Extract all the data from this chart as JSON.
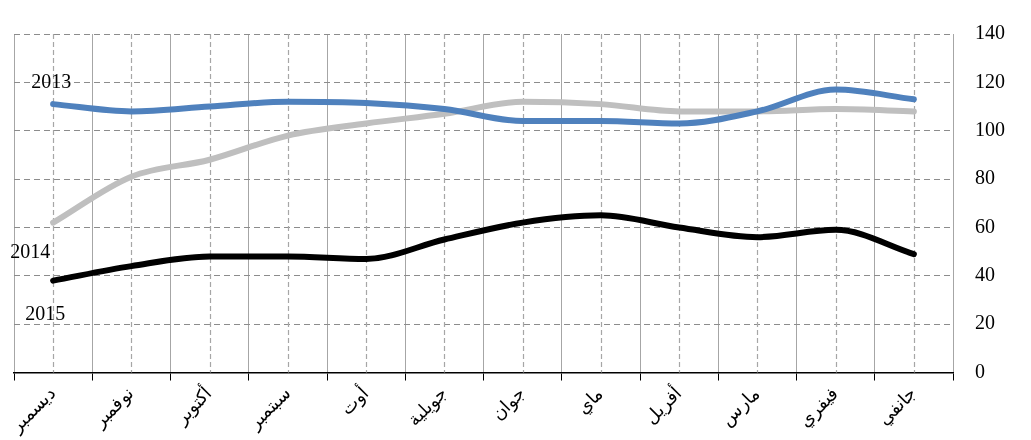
{
  "chart_data": {
    "type": "line",
    "categories": [
      "ديسمبر",
      "نوفمبر",
      "أكتوبر",
      "سبتمبر",
      "أوت",
      "جويلية",
      "جوان",
      "ماي",
      "أفريل",
      "مارس",
      "فيفري",
      "جانفي"
    ],
    "series": [
      {
        "name": "2013",
        "color": "#4f81bd",
        "values": [
          111,
          108,
          110,
          112,
          111.5,
          109,
          104,
          104,
          103,
          108,
          117,
          113
        ]
      },
      {
        "name": "2014",
        "color": "#bfbfbf",
        "values": [
          62,
          81,
          88,
          98,
          103,
          107,
          112,
          111,
          108,
          108,
          109,
          108
        ]
      },
      {
        "name": "2015",
        "color": "#000000",
        "values": [
          38,
          44,
          48,
          48,
          47,
          55,
          62,
          65,
          60,
          56,
          59,
          49
        ]
      }
    ],
    "ylim": [
      0,
      140
    ],
    "yticks": [
      0,
      20,
      40,
      60,
      80,
      100,
      120,
      140
    ],
    "grid": true,
    "legend": false,
    "marker": "none",
    "line_style": "solid"
  }
}
